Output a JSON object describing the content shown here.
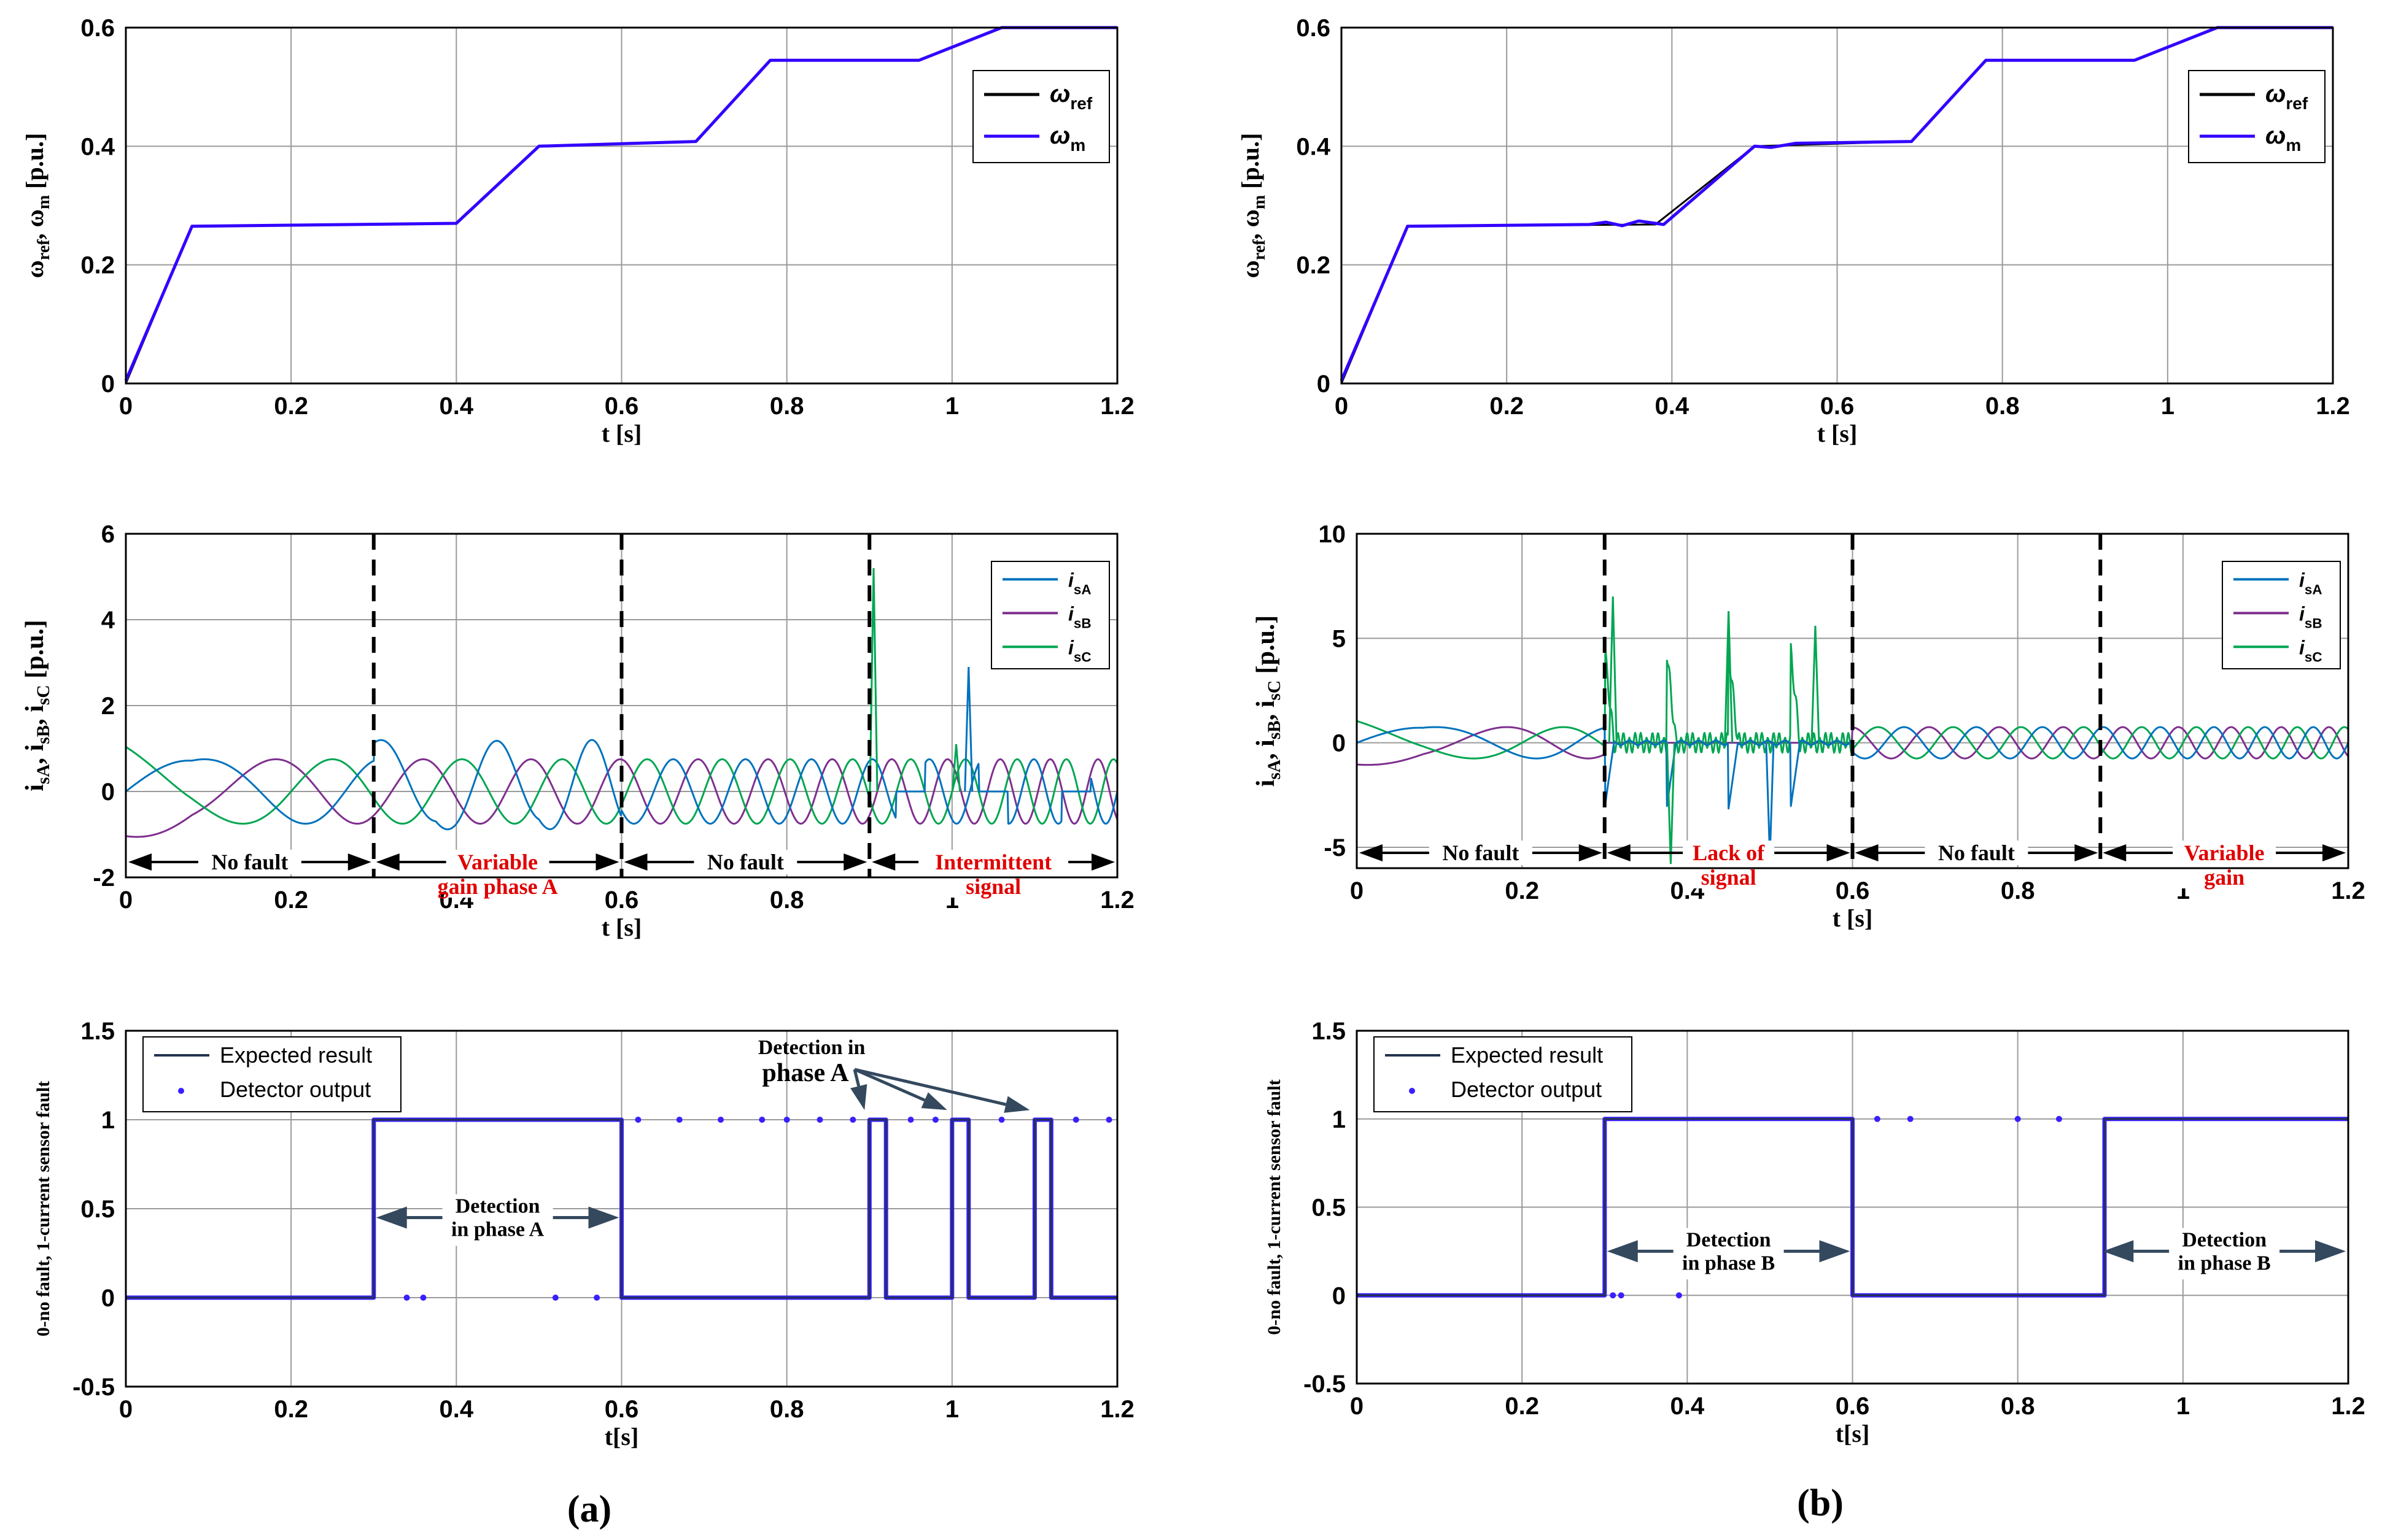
{
  "colors": {
    "ref": "#000000",
    "wm": "#3300ff",
    "isA": "#0072bd",
    "isB": "#7e2f8e",
    "isC": "#00a651",
    "expected": "#22334f",
    "detector": "#3a1fff",
    "annot_red": "#e00000",
    "annot_arrow": "#34495e",
    "grid": "#9a9a9a"
  },
  "chart_data": [
    {
      "type": "line",
      "panel": "a-speed",
      "title": "",
      "xlabel": "t [s]",
      "ylabel_parts": [
        "ω",
        "ref",
        ", ω",
        "m",
        " [p.u.]"
      ],
      "xlim": [
        0,
        1.2
      ],
      "ylim": [
        0,
        0.6
      ],
      "xticks": [
        "0",
        "0.2",
        "0.4",
        "0.6",
        "0.8",
        "1",
        "1.2"
      ],
      "yticks": [
        "0",
        "0.2",
        "0.4",
        "0.6"
      ],
      "grid": true,
      "legend_position": "top-right",
      "series": [
        {
          "name": "ω",
          "sub": "ref",
          "color_key": "ref",
          "x": [
            0,
            0.08,
            0.4,
            0.5,
            0.69,
            0.78,
            0.96,
            1.06,
            1.2
          ],
          "y": [
            0,
            0.265,
            0.27,
            0.4,
            0.408,
            0.545,
            0.545,
            0.6,
            0.6
          ]
        },
        {
          "name": "ω",
          "sub": "m",
          "color_key": "wm",
          "x": [
            0,
            0.08,
            0.4,
            0.5,
            0.69,
            0.78,
            0.96,
            1.06,
            1.2
          ],
          "y": [
            0.005,
            0.265,
            0.27,
            0.4,
            0.408,
            0.545,
            0.545,
            0.6,
            0.6
          ]
        }
      ]
    },
    {
      "type": "line",
      "panel": "b-speed",
      "title": "",
      "xlabel": "t [s]",
      "ylabel_parts": [
        "ω",
        "ref",
        ", ω",
        "m",
        " [p.u.]"
      ],
      "xlim": [
        0,
        1.2
      ],
      "ylim": [
        0,
        0.6
      ],
      "xticks": [
        "0",
        "0.2",
        "0.4",
        "0.6",
        "0.8",
        "1",
        "1.2"
      ],
      "yticks": [
        "0",
        "0.2",
        "0.4",
        "0.6"
      ],
      "grid": true,
      "legend_position": "top-right",
      "series": [
        {
          "name": "ω",
          "sub": "ref",
          "color_key": "ref",
          "x": [
            0,
            0.08,
            0.38,
            0.5,
            0.69,
            0.78,
            0.96,
            1.06,
            1.2
          ],
          "y": [
            0,
            0.265,
            0.268,
            0.4,
            0.408,
            0.545,
            0.545,
            0.6,
            0.6
          ]
        },
        {
          "name": "ω",
          "sub": "m",
          "color_key": "wm",
          "x": [
            0,
            0.08,
            0.3,
            0.32,
            0.34,
            0.36,
            0.38,
            0.39,
            0.5,
            0.52,
            0.55,
            0.69,
            0.78,
            0.96,
            1.06,
            1.2
          ],
          "y": [
            0.005,
            0.265,
            0.268,
            0.272,
            0.266,
            0.274,
            0.27,
            0.268,
            0.4,
            0.398,
            0.405,
            0.408,
            0.545,
            0.545,
            0.6,
            0.6
          ]
        }
      ]
    },
    {
      "type": "line",
      "panel": "a-current",
      "title": "",
      "xlabel": "t [s]",
      "ylabel_parts": [
        "i",
        "sA",
        ", i",
        "sB",
        ", i",
        "sC",
        " [p.u.]"
      ],
      "xlim": [
        0,
        1.2
      ],
      "ylim": [
        -2,
        6
      ],
      "xticks": [
        "0",
        "0.2",
        "0.4",
        "0.6",
        "0.8",
        "1",
        "1.2"
      ],
      "yticks": [
        "-2",
        "0",
        "2",
        "4",
        "6"
      ],
      "grid": true,
      "legend_position": "top-right",
      "series": [
        {
          "name": "i",
          "sub": "sA",
          "color_key": "isA"
        },
        {
          "name": "i",
          "sub": "sB",
          "color_key": "isB"
        },
        {
          "name": "i",
          "sub": "sC",
          "color_key": "isC"
        }
      ],
      "signal": {
        "amp_start": 1.2,
        "amp_ramp_end": 0.08,
        "amp": 0.75,
        "freq_start": 2,
        "freq_end": 18
      },
      "fault_lines_x": [
        0.3,
        0.6,
        0.9
      ],
      "spikes": [
        {
          "x": 0.905,
          "y": 5.2,
          "color_key": "isC"
        },
        {
          "x": 1.02,
          "y": 2.9,
          "color_key": "isA"
        },
        {
          "x": 1.005,
          "y": 1.1,
          "color_key": "isC"
        }
      ],
      "regions": [
        {
          "x0": 0,
          "x1": 0.3,
          "label": [
            "No fault"
          ],
          "red": false
        },
        {
          "x0": 0.3,
          "x1": 0.6,
          "label": [
            "Variable",
            "gain phase A"
          ],
          "red": true
        },
        {
          "x0": 0.6,
          "x1": 0.9,
          "label": [
            "No fault"
          ],
          "red": false
        },
        {
          "x0": 0.9,
          "x1": 1.2,
          "label": [
            "Intermittent",
            "signal"
          ],
          "red": true
        }
      ]
    },
    {
      "type": "line",
      "panel": "b-current",
      "title": "",
      "xlabel": "t [s]",
      "ylabel_parts": [
        "i",
        "sA",
        ", i",
        "sB",
        ", i",
        "sC",
        " [p.u.]"
      ],
      "xlim": [
        0,
        1.2
      ],
      "ylim": [
        -6,
        10
      ],
      "xticks": [
        "0",
        "0.2",
        "0.4",
        "0.6",
        "0.8",
        "1",
        "1.2"
      ],
      "yticks": [
        "-5",
        "0",
        "5",
        "10"
      ],
      "grid": true,
      "legend_position": "top-right",
      "series": [
        {
          "name": "i",
          "sub": "sA",
          "color_key": "isA"
        },
        {
          "name": "i",
          "sub": "sB",
          "color_key": "isB"
        },
        {
          "name": "i",
          "sub": "sC",
          "color_key": "isC"
        }
      ],
      "signal": {
        "amp_start": 1.2,
        "amp_ramp_end": 0.08,
        "amp": 0.75,
        "freq_start": 2,
        "freq_end": 18
      },
      "fault_lines_x": [
        0.3,
        0.6,
        0.9
      ],
      "spikes": [
        {
          "x": 0.31,
          "y": 7.0,
          "color_key": "isC"
        },
        {
          "x": 0.45,
          "y": 6.3,
          "color_key": "isC"
        },
        {
          "x": 0.555,
          "y": 5.6,
          "color_key": "isC"
        },
        {
          "x": 0.38,
          "y": -5.8,
          "color_key": "isC"
        },
        {
          "x": 0.5,
          "y": -5.5,
          "color_key": "isA"
        }
      ],
      "regions": [
        {
          "x0": 0,
          "x1": 0.3,
          "label": [
            "No fault"
          ],
          "red": false
        },
        {
          "x0": 0.3,
          "x1": 0.6,
          "label": [
            "Lack of",
            "signal"
          ],
          "red": true
        },
        {
          "x0": 0.6,
          "x1": 0.9,
          "label": [
            "No fault"
          ],
          "red": false
        },
        {
          "x0": 0.9,
          "x1": 1.2,
          "label": [
            "Variable",
            "gain"
          ],
          "red": true
        }
      ]
    },
    {
      "type": "line",
      "panel": "a-detect",
      "title": "",
      "xlabel": "t[s]",
      "ylabel": "0-no fault, 1-current sensor fault",
      "xlim": [
        0,
        1.2
      ],
      "ylim": [
        -0.5,
        1.5
      ],
      "xticks": [
        "0",
        "0.2",
        "0.4",
        "0.6",
        "0.8",
        "1",
        "1.2"
      ],
      "yticks": [
        "-0.5",
        "0",
        "0.5",
        "1",
        "1.5"
      ],
      "grid": true,
      "legend_position": "top-left",
      "series": [
        {
          "name": "Expected result",
          "color_key": "expected",
          "x": [
            0,
            0.3,
            0.3,
            0.6,
            0.6,
            0.9,
            0.9,
            0.92,
            0.92,
            1.0,
            1.0,
            1.02,
            1.02,
            1.1,
            1.1,
            1.12,
            1.12,
            1.2
          ],
          "y": [
            0,
            0,
            1,
            1,
            0,
            0,
            1,
            1,
            0,
            0,
            1,
            1,
            0,
            0,
            1,
            1,
            0,
            0
          ]
        },
        {
          "name": "Detector output",
          "color_key": "detector",
          "marker": "dot",
          "x": [
            0.34,
            0.36,
            0.52,
            0.57,
            0.62,
            0.67,
            0.72,
            0.77,
            0.8,
            0.84,
            0.88,
            0.95,
            0.98,
            1.06,
            1.15,
            1.19
          ],
          "y": [
            0,
            0,
            0,
            0,
            1,
            1,
            1,
            1,
            1,
            1,
            1,
            1,
            1,
            1,
            1,
            1
          ]
        }
      ],
      "annotations": [
        {
          "text": [
            "Detection",
            "in phase A"
          ],
          "x0": 0.3,
          "x1": 0.6,
          "y": 0.45,
          "type": "double-arrow"
        },
        {
          "text_parts": [
            "Detection in",
            "phase A"
          ],
          "x": 0.83,
          "y": 1.3,
          "targets": [
            [
              0.9,
              1.02
            ],
            [
              1.0,
              1.02
            ],
            [
              1.1,
              1.02
            ]
          ],
          "type": "callout"
        }
      ]
    },
    {
      "type": "line",
      "panel": "b-detect",
      "title": "",
      "xlabel": "t[s]",
      "ylabel": "0-no fault, 1-current sensor fault",
      "xlim": [
        0,
        1.2
      ],
      "ylim": [
        -0.5,
        1.5
      ],
      "xticks": [
        "0",
        "0.2",
        "0.4",
        "0.6",
        "0.8",
        "1",
        "1.2"
      ],
      "yticks": [
        "-0.5",
        "0",
        "0.5",
        "1",
        "1.5"
      ],
      "grid": true,
      "legend_position": "top-left",
      "series": [
        {
          "name": "Expected result",
          "color_key": "expected",
          "x": [
            0,
            0.3,
            0.3,
            0.6,
            0.6,
            0.905,
            0.905,
            1.2
          ],
          "y": [
            0,
            0,
            1,
            1,
            0,
            0,
            1,
            1
          ]
        },
        {
          "name": "Detector output",
          "color_key": "detector",
          "marker": "dot",
          "x": [
            0.31,
            0.32,
            0.39,
            0.63,
            0.67,
            0.8,
            0.85
          ],
          "y": [
            0,
            0,
            0,
            1,
            1,
            1,
            1
          ]
        }
      ],
      "annotations": [
        {
          "text": [
            "Detection",
            "in phase B"
          ],
          "x0": 0.3,
          "x1": 0.6,
          "y": 0.25,
          "type": "double-arrow"
        },
        {
          "text": [
            "Detection",
            "in phase B"
          ],
          "x0": 0.9,
          "x1": 1.2,
          "y": 0.25,
          "type": "double-arrow"
        }
      ]
    }
  ],
  "captions": {
    "a": "(a)",
    "b": "(b)"
  }
}
